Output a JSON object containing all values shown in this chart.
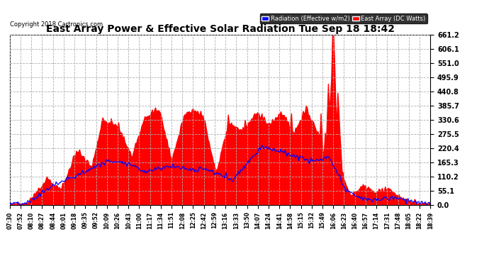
{
  "title": "East Array Power & Effective Solar Radiation Tue Sep 18 18:42",
  "copyright": "Copyright 2018 Cartronics.com",
  "legend_radiation": "Radiation (Effective w/m2)",
  "legend_array": "East Array (DC Watts)",
  "y_ticks": [
    0.0,
    55.1,
    110.2,
    165.3,
    220.4,
    275.5,
    330.6,
    385.7,
    440.8,
    495.9,
    551.0,
    606.1,
    661.2
  ],
  "y_max": 661.2,
  "bg_color": "#ffffff",
  "grid_color": "#b0b0b0",
  "red_color": "#ff0000",
  "blue_color": "#0000ff",
  "x_labels": [
    "07:30",
    "07:52",
    "08:10",
    "08:27",
    "08:44",
    "09:01",
    "09:18",
    "09:35",
    "09:52",
    "10:09",
    "10:26",
    "10:43",
    "11:00",
    "11:17",
    "11:34",
    "11:51",
    "12:08",
    "12:25",
    "12:42",
    "12:59",
    "13:16",
    "13:33",
    "13:50",
    "14:07",
    "14:24",
    "14:41",
    "14:58",
    "15:15",
    "15:32",
    "15:49",
    "16:06",
    "16:23",
    "16:40",
    "16:57",
    "17:14",
    "17:31",
    "17:48",
    "18:05",
    "18:22",
    "18:39"
  ],
  "title_fontsize": 10,
  "copyright_fontsize": 6,
  "tick_fontsize": 7,
  "xtick_fontsize": 5.5
}
